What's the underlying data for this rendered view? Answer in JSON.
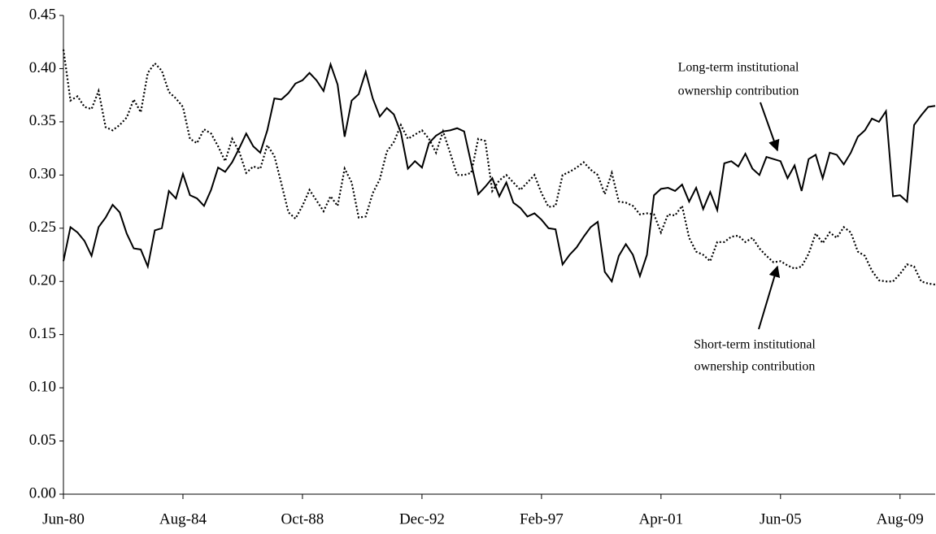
{
  "chart_data": {
    "type": "line",
    "categories": [
      "Jun-80",
      null,
      null,
      null,
      null,
      null,
      null,
      null,
      null,
      null,
      null,
      null,
      null,
      null,
      null,
      null,
      null,
      "Aug-84",
      null,
      null,
      null,
      null,
      null,
      null,
      null,
      null,
      null,
      null,
      null,
      null,
      null,
      null,
      null,
      null,
      "Oct-88",
      null,
      null,
      null,
      null,
      null,
      null,
      null,
      null,
      null,
      null,
      null,
      null,
      null,
      null,
      null,
      null,
      "Dec-92",
      null,
      null,
      null,
      null,
      null,
      null,
      null,
      null,
      null,
      null,
      null,
      null,
      null,
      null,
      null,
      null,
      "Feb-97",
      null,
      null,
      null,
      null,
      null,
      null,
      null,
      null,
      null,
      null,
      null,
      null,
      null,
      null,
      null,
      null,
      "Apr-01",
      null,
      null,
      null,
      null,
      null,
      null,
      null,
      null,
      null,
      null,
      null,
      null,
      null,
      null,
      null,
      null,
      "Jun-05",
      null,
      null,
      null,
      null,
      null,
      null,
      null,
      null,
      null,
      null,
      null,
      null,
      null,
      null,
      null,
      null,
      "Aug-09",
      null,
      null,
      null,
      null,
      null
    ],
    "series": [
      {
        "name": "Long-term institutional ownership contribution",
        "color": "#000000",
        "dash": "solid",
        "values": [
          0.219,
          0.251,
          0.246,
          0.238,
          0.224,
          0.251,
          0.26,
          0.272,
          0.265,
          0.245,
          0.231,
          0.23,
          0.214,
          0.248,
          0.25,
          0.285,
          0.278,
          0.301,
          0.281,
          0.278,
          0.271,
          0.286,
          0.307,
          0.303,
          0.312,
          0.325,
          0.339,
          0.327,
          0.321,
          0.342,
          0.372,
          0.371,
          0.377,
          0.386,
          0.389,
          0.396,
          0.389,
          0.379,
          0.404,
          0.385,
          0.336,
          0.37,
          0.376,
          0.397,
          0.372,
          0.355,
          0.363,
          0.357,
          0.34,
          0.306,
          0.313,
          0.307,
          0.33,
          0.337,
          0.341,
          0.342,
          0.344,
          0.341,
          0.311,
          0.282,
          0.289,
          0.297,
          0.28,
          0.293,
          0.274,
          0.269,
          0.261,
          0.264,
          0.258,
          0.25,
          0.249,
          0.216,
          0.225,
          0.232,
          0.242,
          0.251,
          0.256,
          0.209,
          0.2,
          0.224,
          0.235,
          0.225,
          0.205,
          0.225,
          0.281,
          0.287,
          0.288,
          0.285,
          0.291,
          0.275,
          0.288,
          0.268,
          0.284,
          0.267,
          0.311,
          0.313,
          0.308,
          0.32,
          0.306,
          0.3,
          0.317,
          0.315,
          0.313,
          0.297,
          0.309,
          0.285,
          0.315,
          0.319,
          0.297,
          0.321,
          0.319,
          0.31,
          0.321,
          0.336,
          0.342,
          0.353,
          0.35,
          0.36,
          0.28,
          0.281,
          0.275,
          0.347,
          0.356,
          0.364,
          0.365
        ]
      },
      {
        "name": "Short-term institutional ownership contribution",
        "color": "#000000",
        "dash": "dotted",
        "values": [
          0.418,
          0.37,
          0.374,
          0.364,
          0.362,
          0.379,
          0.345,
          0.342,
          0.347,
          0.354,
          0.371,
          0.359,
          0.396,
          0.405,
          0.398,
          0.378,
          0.372,
          0.364,
          0.334,
          0.33,
          0.343,
          0.339,
          0.327,
          0.313,
          0.334,
          0.322,
          0.302,
          0.308,
          0.306,
          0.328,
          0.318,
          0.292,
          0.265,
          0.259,
          0.271,
          0.286,
          0.276,
          0.266,
          0.28,
          0.271,
          0.306,
          0.293,
          0.26,
          0.261,
          0.283,
          0.296,
          0.322,
          0.331,
          0.347,
          0.334,
          0.338,
          0.342,
          0.334,
          0.321,
          0.341,
          0.321,
          0.3,
          0.3,
          0.302,
          0.334,
          0.332,
          0.285,
          0.295,
          0.3,
          0.293,
          0.286,
          0.293,
          0.3,
          0.283,
          0.27,
          0.271,
          0.3,
          0.303,
          0.307,
          0.312,
          0.305,
          0.3,
          0.282,
          0.302,
          0.275,
          0.274,
          0.271,
          0.263,
          0.264,
          0.263,
          0.246,
          0.263,
          0.262,
          0.271,
          0.241,
          0.228,
          0.225,
          0.219,
          0.237,
          0.237,
          0.242,
          0.243,
          0.237,
          0.241,
          0.231,
          0.224,
          0.218,
          0.219,
          0.215,
          0.212,
          0.214,
          0.226,
          0.245,
          0.236,
          0.246,
          0.241,
          0.251,
          0.246,
          0.228,
          0.224,
          0.21,
          0.201,
          0.2,
          0.2,
          0.207,
          0.216,
          0.214,
          0.2,
          0.198,
          0.197
        ]
      }
    ],
    "ylim": [
      0,
      0.45
    ],
    "yticks": [
      {
        "value": 0,
        "label": "0.00"
      },
      {
        "value": 0.05,
        "label": "0.05"
      },
      {
        "value": 0.1,
        "label": "0.10"
      },
      {
        "value": 0.15,
        "label": "0.15"
      },
      {
        "value": 0.2,
        "label": "0.20"
      },
      {
        "value": 0.25,
        "label": "0.25"
      },
      {
        "value": 0.3,
        "label": "0.30"
      },
      {
        "value": 0.35,
        "label": "0.35"
      },
      {
        "value": 0.4,
        "label": "0.40"
      },
      {
        "value": 0.45,
        "label": "0.45"
      }
    ],
    "grid": false,
    "annotations": [
      {
        "lines": [
          "Long-term institutional",
          "ownership contribution"
        ]
      },
      {
        "lines": [
          "Short-term institutional",
          "ownership contribution"
        ]
      }
    ]
  }
}
